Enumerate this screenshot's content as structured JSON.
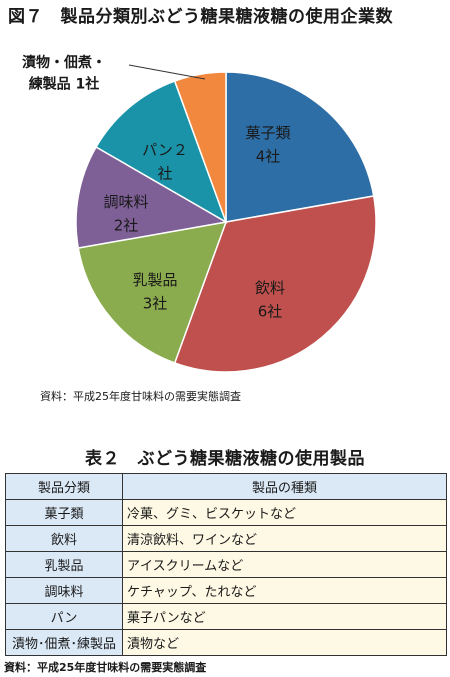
{
  "figure": {
    "title": "図７　製品分類別ぶどう糖果糖液糖の使用企業数",
    "source": "資料：平成25年度甘味料の需要実態調査"
  },
  "chart_data": {
    "type": "pie",
    "title": "図７　製品分類別ぶどう糖果糖液糖の使用企業数",
    "unit": "社",
    "slices": [
      {
        "label": "菓子類",
        "value": 4,
        "value_label": "4社",
        "color": "#2e6ea6"
      },
      {
        "label": "飲料",
        "value": 6,
        "value_label": "6社",
        "color": "#c0504d"
      },
      {
        "label": "乳製品",
        "value": 3,
        "value_label": "3社",
        "color": "#8aab4e"
      },
      {
        "label": "調味料",
        "value": 2,
        "value_label": "2社",
        "color": "#7e5f96"
      },
      {
        "label": "パン",
        "value": 2,
        "value_label": "2社",
        "color": "#1a93a8"
      },
      {
        "label": "漬物・佃煮・練製品",
        "value": 1,
        "value_label": "1社",
        "color": "#f2883d"
      }
    ],
    "label_lines": [
      [
        "菓子類",
        "4社"
      ],
      [
        "飲料",
        "6社"
      ],
      [
        "乳製品",
        "3社"
      ],
      [
        "調味料",
        "2社"
      ],
      [
        "パン２",
        "社"
      ],
      [
        "漬物・佃煮・",
        "練製品 1社"
      ]
    ],
    "legend": "none"
  },
  "table": {
    "title": "表２　ぶどう糖果糖液糖の使用製品",
    "headers": [
      "製品分類",
      "製品の種類"
    ],
    "rows": [
      [
        "菓子類",
        "冷菓、グミ、ビスケットなど"
      ],
      [
        "飲料",
        "清涼飲料、ワインなど"
      ],
      [
        "乳製品",
        "アイスクリームなど"
      ],
      [
        "調味料",
        "ケチャップ、たれなど"
      ],
      [
        "パン",
        "菓子パンなど"
      ],
      [
        "漬物･佃煮･練製品",
        "漬物など"
      ]
    ],
    "source": "資料：平成25年度甘味料の需要実態調査"
  }
}
